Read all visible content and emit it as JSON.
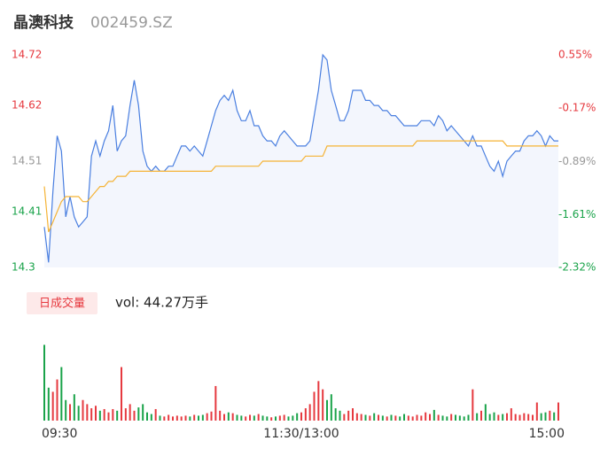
{
  "header": {
    "name": "晶澳科技",
    "code": "002459.SZ"
  },
  "volume_button": "日成交量",
  "volume_summary": "vol: 44.27万手",
  "chart_data": [
    {
      "type": "line",
      "x": [
        0,
        2,
        4,
        6,
        8,
        10,
        12,
        14,
        16,
        18,
        20,
        22,
        24,
        26,
        28,
        30,
        32,
        34,
        36,
        38,
        40,
        42,
        44,
        46,
        48,
        50,
        52,
        54,
        56,
        58,
        60,
        62,
        64,
        66,
        68,
        70,
        72,
        74,
        76,
        78,
        80,
        82,
        84,
        86,
        88,
        90,
        92,
        94,
        96,
        98,
        100,
        102,
        104,
        106,
        108,
        110,
        112,
        114,
        116,
        118,
        120,
        122,
        124,
        126,
        128,
        130,
        132,
        134,
        136,
        138,
        140,
        142,
        144,
        146,
        148,
        150,
        152,
        154,
        156,
        158,
        160,
        162,
        164,
        166,
        168,
        170,
        172,
        174,
        176,
        178,
        180,
        182,
        184,
        186,
        188,
        190,
        192,
        194,
        196,
        198,
        200,
        202,
        204,
        206,
        208,
        210,
        212,
        214,
        216,
        218,
        220,
        222,
        224,
        226,
        228,
        230,
        232,
        234,
        236,
        238,
        240
      ],
      "xlim": [
        0,
        240
      ],
      "ylim": [
        14.3,
        14.72
      ],
      "yticks": [
        14.72,
        14.62,
        14.51,
        14.41,
        14.3
      ],
      "ytick_colors": [
        "#e6393f",
        "#e6393f",
        "#999999",
        "#1aa34a",
        "#1aa34a"
      ],
      "y2lim": [
        -2.32,
        0.55
      ],
      "y2ticks": [
        {
          "value": 0.55,
          "label": "0.55%"
        },
        {
          "value": -0.17,
          "label": "-0.17%"
        },
        {
          "value": -0.89,
          "label": "-0.89%"
        },
        {
          "value": -1.61,
          "label": "-1.61%"
        },
        {
          "value": -2.32,
          "label": "-2.32%"
        }
      ],
      "y2tick_colors": [
        "#e6393f",
        "#e6393f",
        "#999999",
        "#1aa34a",
        "#1aa34a"
      ],
      "series": [
        {
          "name": "price",
          "color": "#4a7fe0",
          "fill": "#f3f6fd",
          "values": [
            14.38,
            14.31,
            14.45,
            14.56,
            14.53,
            14.4,
            14.44,
            14.4,
            14.38,
            14.39,
            14.4,
            14.52,
            14.55,
            14.52,
            14.55,
            14.57,
            14.62,
            14.53,
            14.55,
            14.56,
            14.62,
            14.67,
            14.62,
            14.53,
            14.5,
            14.49,
            14.5,
            14.49,
            14.49,
            14.5,
            14.5,
            14.52,
            14.54,
            14.54,
            14.53,
            14.54,
            14.53,
            14.52,
            14.55,
            14.58,
            14.61,
            14.63,
            14.64,
            14.63,
            14.65,
            14.61,
            14.59,
            14.59,
            14.61,
            14.58,
            14.58,
            14.56,
            14.55,
            14.55,
            14.54,
            14.56,
            14.57,
            14.56,
            14.55,
            14.54,
            14.54,
            14.54,
            14.55,
            14.6,
            14.65,
            14.72,
            14.71,
            14.65,
            14.62,
            14.59,
            14.59,
            14.61,
            14.65,
            14.65,
            14.65,
            14.63,
            14.63,
            14.62,
            14.62,
            14.61,
            14.61,
            14.6,
            14.6,
            14.59,
            14.58,
            14.58,
            14.58,
            14.58,
            14.59,
            14.59,
            14.59,
            14.58,
            14.6,
            14.59,
            14.57,
            14.58,
            14.57,
            14.56,
            14.55,
            14.54,
            14.56,
            14.54,
            14.54,
            14.52,
            14.5,
            14.49,
            14.51,
            14.48,
            14.51,
            14.52,
            14.53,
            14.53,
            14.55,
            14.56,
            14.56,
            14.57,
            14.56,
            14.54,
            14.56,
            14.55,
            14.55
          ]
        },
        {
          "name": "average",
          "color": "#f5b335",
          "values": [
            14.46,
            14.37,
            14.39,
            14.41,
            14.43,
            14.44,
            14.44,
            14.44,
            14.44,
            14.43,
            14.43,
            14.44,
            14.45,
            14.46,
            14.46,
            14.47,
            14.47,
            14.48,
            14.48,
            14.48,
            14.49,
            14.49,
            14.49,
            14.49,
            14.49,
            14.49,
            14.49,
            14.49,
            14.49,
            14.49,
            14.49,
            14.49,
            14.49,
            14.49,
            14.49,
            14.49,
            14.49,
            14.49,
            14.49,
            14.49,
            14.5,
            14.5,
            14.5,
            14.5,
            14.5,
            14.5,
            14.5,
            14.5,
            14.5,
            14.5,
            14.5,
            14.51,
            14.51,
            14.51,
            14.51,
            14.51,
            14.51,
            14.51,
            14.51,
            14.51,
            14.51,
            14.52,
            14.52,
            14.52,
            14.52,
            14.52,
            14.54,
            14.54,
            14.54,
            14.54,
            14.54,
            14.54,
            14.54,
            14.54,
            14.54,
            14.54,
            14.54,
            14.54,
            14.54,
            14.54,
            14.54,
            14.54,
            14.54,
            14.54,
            14.54,
            14.54,
            14.54,
            14.55,
            14.55,
            14.55,
            14.55,
            14.55,
            14.55,
            14.55,
            14.55,
            14.55,
            14.55,
            14.55,
            14.55,
            14.55,
            14.55,
            14.55,
            14.55,
            14.55,
            14.55,
            14.55,
            14.55,
            14.55,
            14.54,
            14.54,
            14.54,
            14.54,
            14.54,
            14.54,
            14.54,
            14.54,
            14.54,
            14.54,
            14.54,
            14.54,
            14.54
          ]
        }
      ]
    },
    {
      "type": "bar",
      "x": [
        0,
        2,
        4,
        6,
        8,
        10,
        12,
        14,
        16,
        18,
        20,
        22,
        24,
        26,
        28,
        30,
        32,
        34,
        36,
        38,
        40,
        42,
        44,
        46,
        48,
        50,
        52,
        54,
        56,
        58,
        60,
        62,
        64,
        66,
        68,
        70,
        72,
        74,
        76,
        78,
        80,
        82,
        84,
        86,
        88,
        90,
        92,
        94,
        96,
        98,
        100,
        102,
        104,
        106,
        108,
        110,
        112,
        114,
        116,
        118,
        120,
        122,
        124,
        126,
        128,
        130,
        132,
        134,
        136,
        138,
        140,
        142,
        144,
        146,
        148,
        150,
        152,
        154,
        156,
        158,
        160,
        162,
        164,
        166,
        168,
        170,
        172,
        174,
        176,
        178,
        180,
        182,
        184,
        186,
        188,
        190,
        192,
        194,
        196,
        198,
        200,
        202,
        204,
        206,
        208,
        210,
        212,
        214,
        216,
        218,
        220,
        222,
        224,
        226,
        228,
        230,
        232,
        234,
        236,
        238,
        240
      ],
      "xlim": [
        0,
        240
      ],
      "ylim": [
        0,
        10000
      ],
      "xticks": [
        {
          "value": 0,
          "label": "09:30"
        },
        {
          "value": 120,
          "label": "11:30/13:00"
        },
        {
          "value": 240,
          "label": "15:00"
        }
      ],
      "up_color": "#e6393f",
      "down_color": "#1aa34a",
      "values": [
        9200,
        4000,
        3500,
        5000,
        6500,
        2500,
        2000,
        3200,
        1800,
        2500,
        2000,
        1500,
        1800,
        1200,
        1400,
        1000,
        1400,
        1200,
        6500,
        1500,
        2000,
        1200,
        1600,
        2000,
        1000,
        800,
        1400,
        600,
        500,
        700,
        500,
        600,
        500,
        600,
        500,
        700,
        600,
        700,
        900,
        1100,
        4200,
        1200,
        800,
        1000,
        900,
        700,
        600,
        500,
        700,
        600,
        800,
        600,
        500,
        400,
        500,
        600,
        700,
        500,
        600,
        900,
        1000,
        1500,
        2000,
        3500,
        4800,
        3800,
        2500,
        3200,
        1500,
        1200,
        800,
        1200,
        1500,
        900,
        800,
        700,
        600,
        900,
        700,
        600,
        500,
        700,
        600,
        500,
        800,
        600,
        500,
        700,
        600,
        1000,
        800,
        1300,
        700,
        600,
        500,
        800,
        700,
        600,
        500,
        700,
        3800,
        900,
        1200,
        2000,
        800,
        1000,
        700,
        800,
        900,
        1500,
        800,
        700,
        900,
        800,
        700,
        2200,
        900,
        1000,
        1200,
        1000,
        2200
      ]
    }
  ]
}
